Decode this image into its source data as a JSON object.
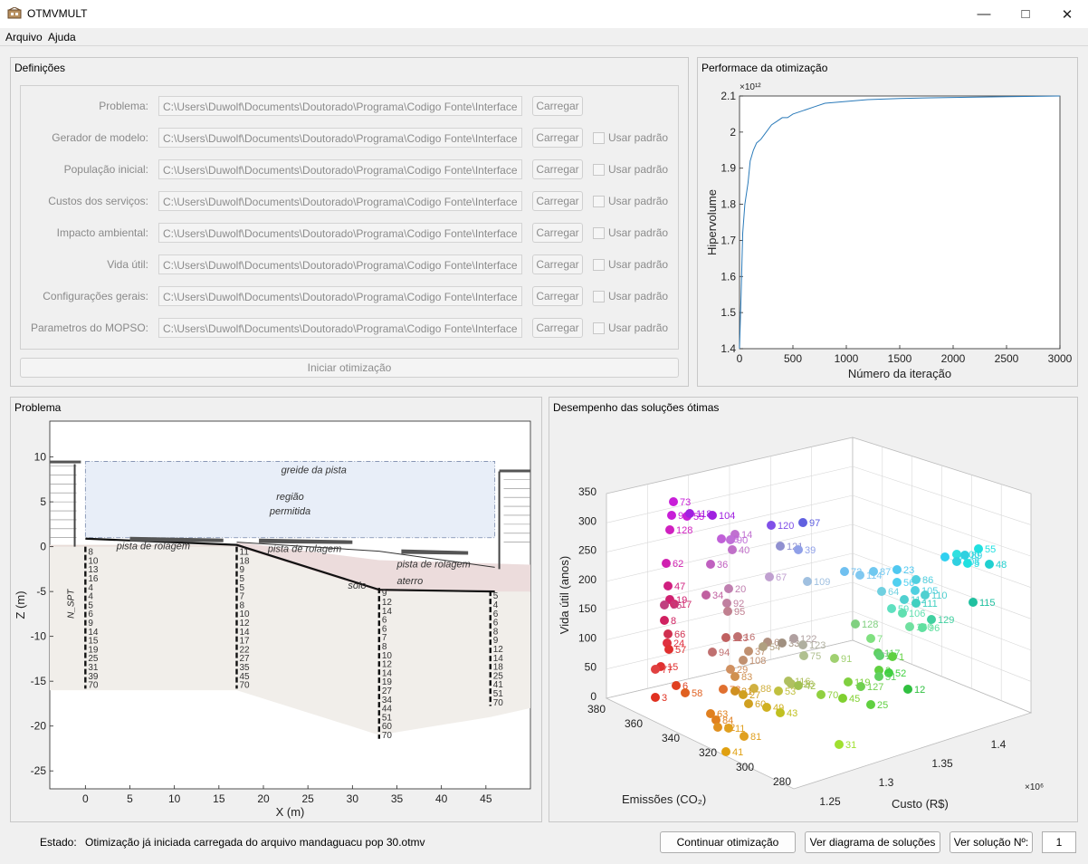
{
  "window": {
    "title": "OTMVMULT"
  },
  "menu": {
    "items": [
      "Arquivo",
      "Ajuda"
    ]
  },
  "definicoes": {
    "title": "Definições",
    "rows": [
      {
        "label": "Problema:",
        "path": "C:\\Users\\Duwolf\\Documents\\Doutorado\\Programa\\Codigo Fonte\\Interface",
        "button": "Carregar",
        "has_default": false
      },
      {
        "label": "Gerador de modelo:",
        "path": "C:\\Users\\Duwolf\\Documents\\Doutorado\\Programa\\Codigo Fonte\\Interface",
        "button": "Carregar",
        "has_default": true
      },
      {
        "label": "População inicial:",
        "path": "C:\\Users\\Duwolf\\Documents\\Doutorado\\Programa\\Codigo Fonte\\Interface",
        "button": "Carregar",
        "has_default": true
      },
      {
        "label": "Custos dos serviços:",
        "path": "C:\\Users\\Duwolf\\Documents\\Doutorado\\Programa\\Codigo Fonte\\Interface",
        "button": "Carregar",
        "has_default": true
      },
      {
        "label": "Impacto ambiental:",
        "path": "C:\\Users\\Duwolf\\Documents\\Doutorado\\Programa\\Codigo Fonte\\Interface",
        "button": "Carregar",
        "has_default": true
      },
      {
        "label": "Vida útil:",
        "path": "C:\\Users\\Duwolf\\Documents\\Doutorado\\Programa\\Codigo Fonte\\Interface",
        "button": "Carregar",
        "has_default": true
      },
      {
        "label": "Configurações gerais:",
        "path": "C:\\Users\\Duwolf\\Documents\\Doutorado\\Programa\\Codigo Fonte\\Interface",
        "button": "Carregar",
        "has_default": true
      },
      {
        "label": "Parametros do MOPSO:",
        "path": "C:\\Users\\Duwolf\\Documents\\Doutorado\\Programa\\Codigo Fonte\\Interface",
        "button": "Carregar",
        "has_default": true
      }
    ],
    "default_label": "Usar padrão",
    "start_button": "Iniciar otimização"
  },
  "performance": {
    "title": "Performace da otimização"
  },
  "problema": {
    "title": "Problema"
  },
  "desempenho": {
    "title": "Desempenho das soluções ótimas"
  },
  "chart_data": [
    {
      "type": "line",
      "xlabel": "Número da iteração",
      "ylabel": "Hipervolume",
      "exponent_label": "×10¹²",
      "xlim": [
        0,
        3000
      ],
      "ylim": [
        1.4,
        2.1
      ],
      "xticks": [
        "0",
        "500",
        "1000",
        "1500",
        "2000",
        "2500",
        "3000"
      ],
      "yticks": [
        "1.4",
        "1.5",
        "1.6",
        "1.7",
        "1.8",
        "1.9",
        "2",
        "2.1"
      ],
      "x": [
        0,
        15,
        30,
        50,
        80,
        100,
        130,
        160,
        200,
        250,
        300,
        350,
        400,
        450,
        500,
        600,
        700,
        800,
        1000,
        1200,
        1500,
        1800,
        2000,
        2500,
        3000
      ],
      "y": [
        1.4,
        1.55,
        1.72,
        1.8,
        1.86,
        1.92,
        1.95,
        1.97,
        1.98,
        2.0,
        2.02,
        2.03,
        2.04,
        2.04,
        2.05,
        2.06,
        2.07,
        2.08,
        2.085,
        2.09,
        2.093,
        2.095,
        2.096,
        2.098,
        2.1
      ],
      "series_color": "#2a7ab9"
    },
    {
      "type": "diagram",
      "xlabel": "X (m)",
      "ylabel": "Z (m)",
      "xlim": [
        -4,
        50
      ],
      "ylim": [
        -27,
        14
      ],
      "xticks": [
        "0",
        "5",
        "10",
        "15",
        "20",
        "25",
        "30",
        "35",
        "40",
        "45"
      ],
      "yticks": [
        "10",
        "5",
        "0",
        "-5",
        "-10",
        "-15",
        "-20",
        "-25"
      ],
      "annotations": [
        "greide da pista",
        "região",
        "permitida",
        "pista de rolagem",
        "pista de rolagem",
        "pista de rolagem",
        "solo",
        "aterro",
        "N_SPT"
      ],
      "boreholes": [
        {
          "x": 0,
          "values": [
            "8",
            "10",
            "13",
            "16",
            "4",
            "4",
            "5",
            "6",
            "9",
            "14",
            "15",
            "19",
            "25",
            "31",
            "39",
            "70"
          ]
        },
        {
          "x": 17,
          "values": [
            "11",
            "18",
            "9",
            "5",
            "5",
            "7",
            "8",
            "10",
            "12",
            "14",
            "17",
            "22",
            "27",
            "35",
            "45",
            "70"
          ]
        },
        {
          "x": 33,
          "values": [
            "9",
            "12",
            "14",
            "6",
            "6",
            "7",
            "8",
            "10",
            "12",
            "14",
            "19",
            "27",
            "34",
            "44",
            "51",
            "60",
            "70"
          ]
        },
        {
          "x": 45.5,
          "values": [
            "5",
            "4",
            "6",
            "6",
            "8",
            "9",
            "12",
            "14",
            "18",
            "25",
            "41",
            "51",
            "70"
          ]
        }
      ]
    },
    {
      "type": "scatter",
      "xlabel": "Custo (R$)",
      "ylabel": "Vida útil (anos)",
      "zlabel": "Emissões (CO₂)",
      "x_exponent": "×10⁶",
      "ylim": [
        0,
        350
      ],
      "yticks": [
        "0",
        "50",
        "100",
        "150",
        "200",
        "250",
        "300",
        "350"
      ],
      "xticks": [
        "1.25",
        "1.3",
        "1.35",
        "1.4"
      ],
      "zticks": [
        "380",
        "360",
        "340",
        "320",
        "300",
        "280"
      ],
      "points": [
        {
          "label": "73",
          "c": "#c81ed8"
        },
        {
          "label": "99",
          "c": "#c81ed8"
        },
        {
          "label": "55",
          "c": "#c81ed8"
        },
        {
          "label": "118",
          "c": "#a020e0"
        },
        {
          "label": "104",
          "c": "#a020e0"
        },
        {
          "label": "128",
          "c": "#d020c0"
        },
        {
          "label": "120",
          "c": "#8050e8"
        },
        {
          "label": "97",
          "c": "#6060e0"
        },
        {
          "label": "14",
          "c": "#c070d0"
        },
        {
          "label": "79",
          "c": "#c060d8"
        },
        {
          "label": "90",
          "c": "#c070d8"
        },
        {
          "label": "40",
          "c": "#c070c8"
        },
        {
          "label": "121",
          "c": "#9090d0"
        },
        {
          "label": "39",
          "c": "#90a0e8"
        },
        {
          "label": "62",
          "c": "#d020b0"
        },
        {
          "label": "36",
          "c": "#c060c0"
        },
        {
          "label": "67",
          "c": "#c0a0d0"
        },
        {
          "label": "109",
          "c": "#a0c0e0"
        },
        {
          "label": "47",
          "c": "#d02080"
        },
        {
          "label": "34",
          "c": "#c060a0"
        },
        {
          "label": "20",
          "c": "#c080b0"
        },
        {
          "label": "19",
          "c": "#d02070"
        },
        {
          "label": "17",
          "c": "#d03070"
        },
        {
          "label": "92",
          "c": "#c080a0"
        },
        {
          "label": "35",
          "c": "#c04080"
        },
        {
          "label": "95",
          "c": "#c08090"
        },
        {
          "label": "8",
          "c": "#d02060"
        },
        {
          "label": "66",
          "c": "#d03050"
        },
        {
          "label": "24",
          "c": "#e03040"
        },
        {
          "label": "57",
          "c": "#e03030"
        },
        {
          "label": "15",
          "c": "#e03030"
        },
        {
          "label": "113",
          "c": "#c06060"
        },
        {
          "label": "16",
          "c": "#c07070"
        },
        {
          "label": "94",
          "c": "#c07070"
        },
        {
          "label": "37",
          "c": "#c09070"
        },
        {
          "label": "108",
          "c": "#c09070"
        },
        {
          "label": "65",
          "c": "#b09080"
        },
        {
          "label": "54",
          "c": "#b0a080"
        },
        {
          "label": "29",
          "c": "#d09060"
        },
        {
          "label": "83",
          "c": "#d09050"
        },
        {
          "label": "33",
          "c": "#a09080"
        },
        {
          "label": "122",
          "c": "#b0a0a0"
        },
        {
          "label": "123",
          "c": "#b0b0a0"
        },
        {
          "label": "75",
          "c": "#b0c090"
        },
        {
          "label": "91",
          "c": "#a0d070"
        },
        {
          "label": "77",
          "c": "#e04040"
        },
        {
          "label": "6",
          "c": "#e04020"
        },
        {
          "label": "3",
          "c": "#e03020"
        },
        {
          "label": "58",
          "c": "#e06020"
        },
        {
          "label": "78",
          "c": "#e07030"
        },
        {
          "label": "88",
          "c": "#d0b040"
        },
        {
          "label": "53",
          "c": "#c0c040"
        },
        {
          "label": "116",
          "c": "#b0c060"
        },
        {
          "label": "126",
          "c": "#b0c060"
        },
        {
          "label": "42",
          "c": "#a0c050"
        },
        {
          "label": "70",
          "c": "#90d040"
        },
        {
          "label": "45",
          "c": "#80d030"
        },
        {
          "label": "119",
          "c": "#80d040"
        },
        {
          "label": "127",
          "c": "#70d050"
        },
        {
          "label": "25",
          "c": "#60d040"
        },
        {
          "label": "128",
          "c": "#80d080"
        },
        {
          "label": "7",
          "c": "#80e080"
        },
        {
          "label": "117",
          "c": "#60d060"
        },
        {
          "label": "26",
          "c": "#60d070"
        },
        {
          "label": "1",
          "c": "#60d040"
        },
        {
          "label": "3",
          "c": "#60d040"
        },
        {
          "label": "52",
          "c": "#40d040"
        },
        {
          "label": "12",
          "c": "#30c040"
        },
        {
          "label": "51",
          "c": "#60d060"
        },
        {
          "label": "21",
          "c": "#d09020"
        },
        {
          "label": "27",
          "c": "#d0a020"
        },
        {
          "label": "60",
          "c": "#d0a020"
        },
        {
          "label": "49",
          "c": "#d0b020"
        },
        {
          "label": "43",
          "c": "#c0c020"
        },
        {
          "label": "63",
          "c": "#e08020"
        },
        {
          "label": "84",
          "c": "#e08020"
        },
        {
          "label": "22",
          "c": "#e09020"
        },
        {
          "label": "11",
          "c": "#e0a020"
        },
        {
          "label": "81",
          "c": "#e0a020"
        },
        {
          "label": "41",
          "c": "#e0a010"
        },
        {
          "label": "31",
          "c": "#a0e030"
        },
        {
          "label": "72",
          "c": "#70c0f0"
        },
        {
          "label": "114",
          "c": "#80c8f0"
        },
        {
          "label": "87",
          "c": "#70c8f0"
        },
        {
          "label": "23",
          "c": "#50c8f0"
        },
        {
          "label": "56",
          "c": "#50d0f0"
        },
        {
          "label": "86",
          "c": "#50d0e0"
        },
        {
          "label": "64",
          "c": "#70d0e0"
        },
        {
          "label": "105",
          "c": "#50d0e0"
        },
        {
          "label": "110",
          "c": "#50d0d0"
        },
        {
          "label": "59",
          "c": "#60e0c0"
        },
        {
          "label": "112",
          "c": "#50d0d0"
        },
        {
          "label": "111",
          "c": "#40d0c0"
        },
        {
          "label": "106",
          "c": "#60e0b0"
        },
        {
          "label": "130",
          "c": "#70e0a0"
        },
        {
          "label": "96",
          "c": "#60e0a0"
        },
        {
          "label": "129",
          "c": "#40d0a0"
        },
        {
          "label": "10",
          "c": "#30d0f0"
        },
        {
          "label": "100",
          "c": "#30e0e0"
        },
        {
          "label": "103",
          "c": "#30d0e0"
        },
        {
          "label": "89",
          "c": "#30d0e0"
        },
        {
          "label": "5",
          "c": "#20e0e0"
        },
        {
          "label": "55",
          "c": "#20e0e0"
        },
        {
          "label": "48",
          "c": "#20d0d0"
        },
        {
          "label": "115",
          "c": "#20c0a0"
        }
      ]
    }
  ],
  "status": {
    "label": "Estado:",
    "text": "Otimização já iniciada carregada do arquivo mandaguacu pop 30.otmv"
  },
  "buttons": {
    "continue": "Continuar otimização",
    "diagram": "Ver diagrama de soluções",
    "view_solution": "Ver solução Nº:",
    "solution_value": "1"
  }
}
